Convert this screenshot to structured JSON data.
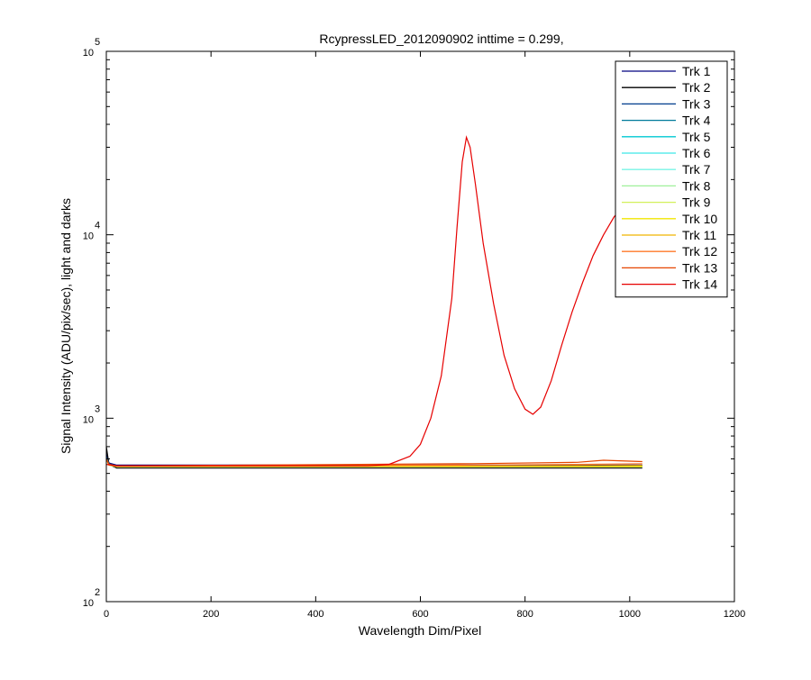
{
  "chart_data": {
    "type": "line",
    "title": "RcypressLED_2012090902 inttime = 0.299,",
    "xlabel": "Wavelength Dim/Pixel",
    "ylabel": "Signal Intensity (ADU/pix/sec), light and darks",
    "xlim": [
      0,
      1200
    ],
    "ylim": [
      100,
      100000
    ],
    "yscale": "log",
    "xticks": [
      "0",
      "200",
      "400",
      "600",
      "800",
      "1000",
      "1200"
    ],
    "yticks": [
      {
        "base": "10",
        "exp": "2",
        "value": 100
      },
      {
        "base": "10",
        "exp": "3",
        "value": 1000
      },
      {
        "base": "10",
        "exp": "4",
        "value": 10000
      },
      {
        "base": "10",
        "exp": "5",
        "value": 100000
      }
    ],
    "grid": false,
    "legend_position": "top-right",
    "series": [
      {
        "name": "Trk 1",
        "color": "#000080",
        "x": [
          0,
          5,
          20,
          1024
        ],
        "y": [
          640,
          570,
          555,
          555
        ]
      },
      {
        "name": "Trk 2",
        "color": "#000000",
        "x": [
          0,
          5,
          20,
          1024
        ],
        "y": [
          700,
          560,
          535,
          535
        ]
      },
      {
        "name": "Trk 3",
        "color": "#003c8c",
        "x": [
          0,
          5,
          20,
          1024
        ],
        "y": [
          620,
          565,
          550,
          550
        ]
      },
      {
        "name": "Trk 4",
        "color": "#007a9a",
        "x": [
          0,
          5,
          20,
          1024
        ],
        "y": [
          610,
          560,
          548,
          548
        ]
      },
      {
        "name": "Trk 5",
        "color": "#00c8d2",
        "x": [
          0,
          5,
          20,
          1024
        ],
        "y": [
          605,
          558,
          546,
          546
        ]
      },
      {
        "name": "Trk 6",
        "color": "#3ce6e6",
        "x": [
          0,
          5,
          20,
          1024
        ],
        "y": [
          600,
          556,
          545,
          545
        ]
      },
      {
        "name": "Trk 7",
        "color": "#7af5e6",
        "x": [
          0,
          5,
          20,
          1024
        ],
        "y": [
          600,
          556,
          544,
          544
        ]
      },
      {
        "name": "Trk 8",
        "color": "#9ff09a",
        "x": [
          0,
          5,
          20,
          1024
        ],
        "y": [
          600,
          556,
          544,
          544
        ]
      },
      {
        "name": "Trk 9",
        "color": "#d2f05a",
        "x": [
          0,
          5,
          20,
          1024
        ],
        "y": [
          600,
          556,
          545,
          545
        ]
      },
      {
        "name": "Trk 10",
        "color": "#f0e600",
        "x": [
          0,
          5,
          20,
          1024
        ],
        "y": [
          600,
          556,
          545,
          545
        ]
      },
      {
        "name": "Trk 11",
        "color": "#f0b400",
        "x": [
          0,
          5,
          20,
          800,
          1024
        ],
        "y": [
          600,
          556,
          546,
          548,
          552
        ]
      },
      {
        "name": "Trk 12",
        "color": "#ff7a28",
        "x": [
          0,
          5,
          20,
          700,
          900,
          1024
        ],
        "y": [
          600,
          560,
          548,
          556,
          560,
          565
        ]
      },
      {
        "name": "Trk 13",
        "color": "#e64600",
        "x": [
          0,
          5,
          20,
          700,
          900,
          950,
          1024
        ],
        "y": [
          600,
          560,
          550,
          565,
          575,
          590,
          580
        ]
      },
      {
        "name": "Trk 14",
        "color": "#e60000",
        "x": [
          0,
          20,
          500,
          540,
          580,
          600,
          620,
          640,
          660,
          670,
          680,
          688,
          695,
          705,
          720,
          740,
          760,
          780,
          800,
          815,
          830,
          850,
          870,
          890,
          910,
          930,
          950,
          970,
          980
        ],
        "y": [
          560,
          550,
          550,
          560,
          620,
          720,
          1000,
          1700,
          4500,
          11000,
          25000,
          34000,
          30000,
          19000,
          9000,
          4200,
          2200,
          1450,
          1120,
          1050,
          1150,
          1600,
          2500,
          3800,
          5500,
          7700,
          10000,
          12500,
          13500
        ]
      }
    ]
  }
}
